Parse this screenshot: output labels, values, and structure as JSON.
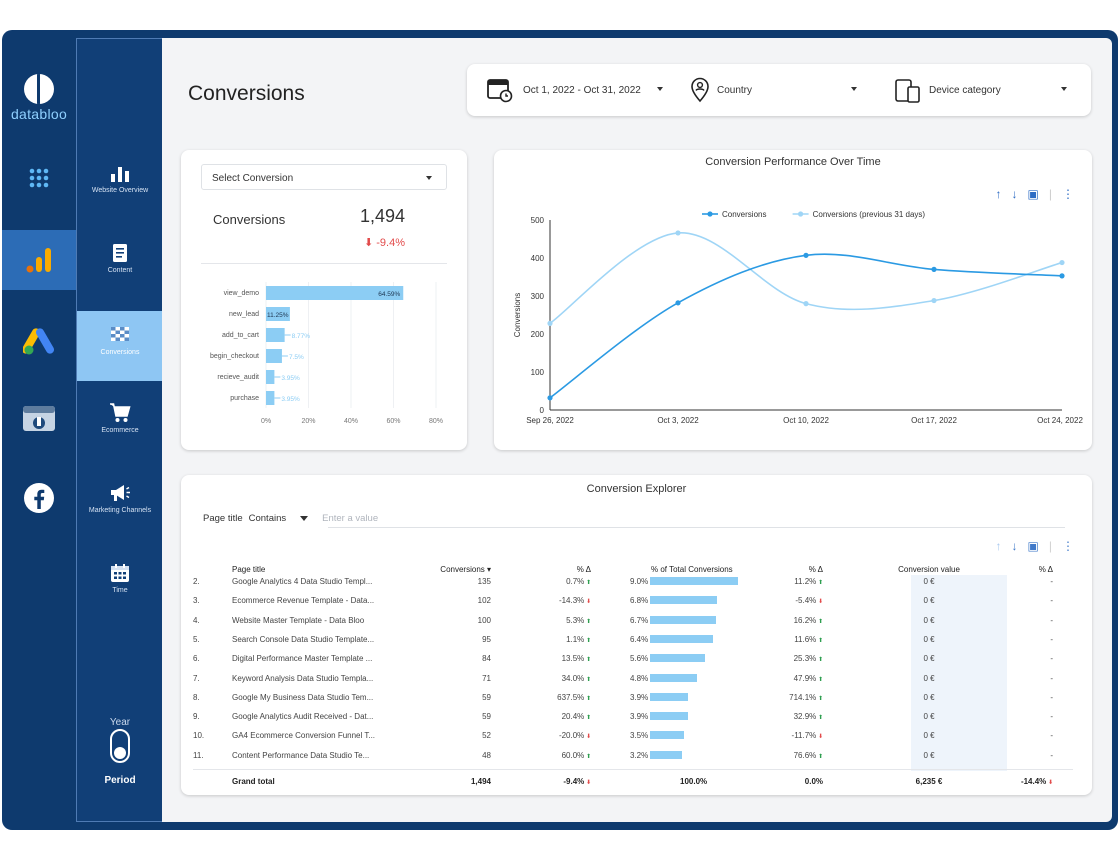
{
  "brand": {
    "logo_text": "databloo"
  },
  "iconbar": [
    {
      "name": "apps-grid-icon",
      "active": false
    },
    {
      "name": "analytics-icon",
      "active": true
    },
    {
      "name": "google-ads-icon",
      "active": false
    },
    {
      "name": "search-console-icon",
      "active": false
    },
    {
      "name": "facebook-icon",
      "active": false
    }
  ],
  "nav": {
    "items": [
      {
        "label": "Website Overview",
        "icon": "bar-chart-icon",
        "active": false
      },
      {
        "label": "Content",
        "icon": "document-icon",
        "active": false
      },
      {
        "label": "Conversions",
        "icon": "checkered-flag-icon",
        "active": true
      },
      {
        "label": "Ecommerce",
        "icon": "cart-icon",
        "active": false
      },
      {
        "label": "Marketing Channels",
        "icon": "megaphone-icon",
        "active": false
      },
      {
        "label": "Time",
        "icon": "calendar-icon",
        "active": false
      }
    ],
    "year_label": "Year",
    "period_label": "Period"
  },
  "page": {
    "title": "Conversions"
  },
  "filters": {
    "date_range": "Oct 1, 2022 - Oct 31, 2022",
    "country": "Country",
    "device": "Device category"
  },
  "kpi": {
    "select_label": "Select Conversion",
    "label": "Conversions",
    "value": "1,494",
    "delta": "-9.4%"
  },
  "funnel_chart": {
    "type": "bar",
    "orientation": "horizontal",
    "categories": [
      "view_demo",
      "new_lead",
      "add_to_cart",
      "begin_checkout",
      "recieve_audit",
      "purchase"
    ],
    "values": [
      64.59,
      11.25,
      8.77,
      7.5,
      3.95,
      3.95
    ],
    "labels": [
      "64.59%",
      "11.25%",
      "8.77%",
      "7.5%",
      "3.95%",
      "3.95%"
    ],
    "xticks": [
      "0%",
      "20%",
      "40%",
      "60%",
      "80%"
    ],
    "xlim": [
      0,
      80
    ],
    "color": "#8ccdf4"
  },
  "chart_data": {
    "type": "line",
    "title": "Conversion Performance Over Time",
    "ylabel": "Conversions",
    "x": [
      "Sep 26, 2022",
      "Oct 3, 2022",
      "Oct 10, 2022",
      "Oct 17, 2022",
      "Oct 24, 2022"
    ],
    "yticks": [
      "0",
      "100",
      "200",
      "300",
      "400",
      "500"
    ],
    "ylim": [
      0,
      500
    ],
    "legend_position": "top",
    "series": [
      {
        "name": "Conversions",
        "values": [
          32,
          282,
          407,
          370,
          353
        ],
        "color": "#2b9ae3"
      },
      {
        "name": "Conversions (previous 31 days)",
        "values": [
          228,
          466,
          280,
          288,
          388
        ],
        "color": "#9fd5f6"
      }
    ]
  },
  "explorer": {
    "title": "Conversion Explorer",
    "filter_field": "Page title",
    "filter_op": "Contains",
    "filter_placeholder": "Enter a value",
    "columns": {
      "title": "Page title",
      "conversions": "Conversions ▾",
      "pct1": "% Δ",
      "total": "% of Total Conversions",
      "pct2": "% Δ",
      "cval": "Conversion value",
      "pct3": "% Δ"
    },
    "rows": [
      {
        "n": "2.",
        "title": "Google Analytics 4 Data Studio Templ...",
        "conv": "135",
        "d1": "0.7%",
        "d1dir": "up",
        "share": 9.0,
        "share_label": "9.0%",
        "d2": "11.2%",
        "d2dir": "up",
        "cval": "0 €",
        "d3": "-"
      },
      {
        "n": "3.",
        "title": "Ecommerce Revenue Template - Data...",
        "conv": "102",
        "d1": "-14.3%",
        "d1dir": "dn",
        "share": 6.8,
        "share_label": "6.8%",
        "d2": "-5.4%",
        "d2dir": "dn",
        "cval": "0 €",
        "d3": "-"
      },
      {
        "n": "4.",
        "title": "Website Master Template - Data Bloo",
        "conv": "100",
        "d1": "5.3%",
        "d1dir": "up",
        "share": 6.7,
        "share_label": "6.7%",
        "d2": "16.2%",
        "d2dir": "up",
        "cval": "0 €",
        "d3": "-"
      },
      {
        "n": "5.",
        "title": "Search Console Data Studio Template...",
        "conv": "95",
        "d1": "1.1%",
        "d1dir": "up",
        "share": 6.4,
        "share_label": "6.4%",
        "d2": "11.6%",
        "d2dir": "up",
        "cval": "0 €",
        "d3": "-"
      },
      {
        "n": "6.",
        "title": "Digital Performance Master Template ...",
        "conv": "84",
        "d1": "13.5%",
        "d1dir": "up",
        "share": 5.6,
        "share_label": "5.6%",
        "d2": "25.3%",
        "d2dir": "up",
        "cval": "0 €",
        "d3": "-"
      },
      {
        "n": "7.",
        "title": "Keyword Analysis Data Studio Templa...",
        "conv": "71",
        "d1": "34.0%",
        "d1dir": "up",
        "share": 4.8,
        "share_label": "4.8%",
        "d2": "47.9%",
        "d2dir": "up",
        "cval": "0 €",
        "d3": "-"
      },
      {
        "n": "8.",
        "title": "Google My Business Data Studio Tem...",
        "conv": "59",
        "d1": "637.5%",
        "d1dir": "up",
        "share": 3.9,
        "share_label": "3.9%",
        "d2": "714.1%",
        "d2dir": "up",
        "cval": "0 €",
        "d3": "-"
      },
      {
        "n": "9.",
        "title": "Google Analytics Audit Received - Dat...",
        "conv": "59",
        "d1": "20.4%",
        "d1dir": "up",
        "share": 3.9,
        "share_label": "3.9%",
        "d2": "32.9%",
        "d2dir": "up",
        "cval": "0 €",
        "d3": "-"
      },
      {
        "n": "10.",
        "title": "GA4 Ecommerce Conversion Funnel T...",
        "conv": "52",
        "d1": "-20.0%",
        "d1dir": "dn",
        "share": 3.5,
        "share_label": "3.5%",
        "d2": "-11.7%",
        "d2dir": "dn",
        "cval": "0 €",
        "d3": "-"
      },
      {
        "n": "11.",
        "title": "Content Performance Data Studio Te...",
        "conv": "48",
        "d1": "60.0%",
        "d1dir": "up",
        "share": 3.2,
        "share_label": "3.2%",
        "d2": "76.6%",
        "d2dir": "up",
        "cval": "0 €",
        "d3": "-"
      }
    ],
    "grand_total": {
      "label": "Grand total",
      "conv": "1,494",
      "d1": "-9.4%",
      "total": "100.0%",
      "d2": "0.0%",
      "cval": "6,235 €",
      "d3": "-14.4%"
    }
  }
}
